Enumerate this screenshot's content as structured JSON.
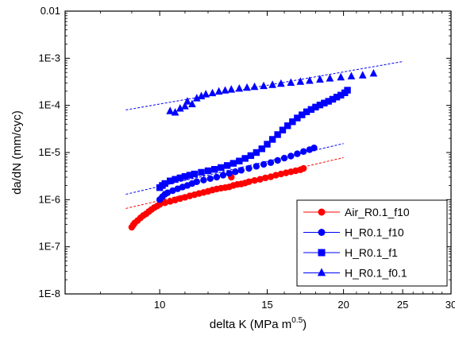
{
  "chart_data": {
    "type": "scatter",
    "xlabel": "delta K (MPa m",
    "xlabel_superscript": "0.5",
    "xlabel_close": ")",
    "ylabel": "da/dN (mm/cyc)",
    "xscale": "log",
    "yscale": "log",
    "xlim": [
      7.0,
      30.0
    ],
    "ylim": [
      1e-08,
      0.01
    ],
    "x_ticks": [
      {
        "value": 10,
        "label": "10"
      },
      {
        "value": 15,
        "label": "15"
      },
      {
        "value": 20,
        "label": "20"
      },
      {
        "value": 25,
        "label": "25"
      },
      {
        "value": 30,
        "label": "30"
      }
    ],
    "y_ticks": [
      {
        "value": 1e-08,
        "label": "1E-8"
      },
      {
        "value": 1e-07,
        "label": "1E-7"
      },
      {
        "value": 1e-06,
        "label": "1E-6"
      },
      {
        "value": 1e-05,
        "label": "1E-5"
      },
      {
        "value": 0.0001,
        "label": "1E-4"
      },
      {
        "value": 0.001,
        "label": "1E-3"
      },
      {
        "value": 0.01,
        "label": "0.01"
      }
    ],
    "legend_position": "bottom-right",
    "series": [
      {
        "name": "Air_R0.1_f10",
        "color": "#ff0000",
        "marker": "circle",
        "trend": {
          "x": [
            8.8,
            20.0
          ],
          "y": [
            6.5e-07,
            7.8e-06
          ]
        },
        "points": [
          [
            9.0,
            2.6e-07
          ],
          [
            9.05,
            2.9e-07
          ],
          [
            9.1,
            3.2e-07
          ],
          [
            9.2,
            3.6e-07
          ],
          [
            9.3,
            4.1e-07
          ],
          [
            9.4,
            4.6e-07
          ],
          [
            9.5,
            5e-07
          ],
          [
            9.6,
            5.6e-07
          ],
          [
            9.7,
            6.2e-07
          ],
          [
            9.8,
            6.8e-07
          ],
          [
            9.9,
            7.3e-07
          ],
          [
            10.0,
            7.9e-07
          ],
          [
            10.2,
            8.6e-07
          ],
          [
            10.4,
            9.2e-07
          ],
          [
            10.6,
            9.8e-07
          ],
          [
            10.8,
            1.05e-06
          ],
          [
            11.0,
            1.12e-06
          ],
          [
            11.2,
            1.2e-06
          ],
          [
            11.4,
            1.27e-06
          ],
          [
            11.6,
            1.35e-06
          ],
          [
            11.8,
            1.42e-06
          ],
          [
            12.0,
            1.5e-06
          ],
          [
            12.2,
            1.6e-06
          ],
          [
            12.4,
            1.68e-06
          ],
          [
            12.6,
            1.75e-06
          ],
          [
            12.8,
            1.8e-06
          ],
          [
            13.0,
            1.86e-06
          ],
          [
            13.1,
            3e-06
          ],
          [
            13.2,
            2e-06
          ],
          [
            13.4,
            2.1e-06
          ],
          [
            13.6,
            2.15e-06
          ],
          [
            13.8,
            2.25e-06
          ],
          [
            14.0,
            2.4e-06
          ],
          [
            14.3,
            2.55e-06
          ],
          [
            14.6,
            2.7e-06
          ],
          [
            14.9,
            2.9e-06
          ],
          [
            15.2,
            3.05e-06
          ],
          [
            15.5,
            3.3e-06
          ],
          [
            15.8,
            3.5e-06
          ],
          [
            16.1,
            3.7e-06
          ],
          [
            16.4,
            3.9e-06
          ],
          [
            16.7,
            4.1e-06
          ],
          [
            17.0,
            4.3e-06
          ],
          [
            17.2,
            4.6e-06
          ]
        ]
      },
      {
        "name": "H_R0.1_f10",
        "color": "#0000ff",
        "marker": "circle",
        "trend": {
          "x": [
            8.8,
            20.0
          ],
          "y": [
            1.3e-06,
            1.55e-05
          ]
        },
        "points": [
          [
            10.0,
            1e-06
          ],
          [
            10.1,
            1.15e-06
          ],
          [
            10.2,
            1.3e-06
          ],
          [
            10.3,
            1.4e-06
          ],
          [
            10.5,
            1.55e-06
          ],
          [
            10.7,
            1.7e-06
          ],
          [
            10.9,
            1.85e-06
          ],
          [
            11.1,
            2e-06
          ],
          [
            11.3,
            2.2e-06
          ],
          [
            11.5,
            2.4e-06
          ],
          [
            11.8,
            2.6e-06
          ],
          [
            12.1,
            2.8e-06
          ],
          [
            12.4,
            3e-06
          ],
          [
            12.7,
            3.3e-06
          ],
          [
            13.0,
            3.6e-06
          ],
          [
            13.3,
            3.9e-06
          ],
          [
            13.6,
            4.2e-06
          ],
          [
            14.0,
            4.6e-06
          ],
          [
            14.4,
            5.1e-06
          ],
          [
            14.8,
            5.6e-06
          ],
          [
            15.2,
            6.1e-06
          ],
          [
            15.6,
            6.8e-06
          ],
          [
            16.0,
            7.6e-06
          ],
          [
            16.4,
            8.4e-06
          ],
          [
            16.8,
            9.4e-06
          ],
          [
            17.2,
            1.05e-05
          ],
          [
            17.6,
            1.15e-05
          ],
          [
            17.9,
            1.25e-05
          ]
        ]
      },
      {
        "name": "H_R0.1_f1",
        "color": "#0000ff",
        "marker": "square",
        "trend": null,
        "points": [
          [
            10.0,
            1.8e-06
          ],
          [
            10.1,
            2e-06
          ],
          [
            10.2,
            2.2e-06
          ],
          [
            10.4,
            2.5e-06
          ],
          [
            10.6,
            2.7e-06
          ],
          [
            10.8,
            2.9e-06
          ],
          [
            11.0,
            3.1e-06
          ],
          [
            11.2,
            3.3e-06
          ],
          [
            11.4,
            3.5e-06
          ],
          [
            11.7,
            3.8e-06
          ],
          [
            12.0,
            4.1e-06
          ],
          [
            12.3,
            4.4e-06
          ],
          [
            12.6,
            4.8e-06
          ],
          [
            12.9,
            5.3e-06
          ],
          [
            13.2,
            5.9e-06
          ],
          [
            13.5,
            6.6e-06
          ],
          [
            13.8,
            7.5e-06
          ],
          [
            14.1,
            8.6e-06
          ],
          [
            14.4,
            1e-05
          ],
          [
            14.7,
            1.2e-05
          ],
          [
            15.0,
            1.5e-05
          ],
          [
            15.3,
            1.9e-05
          ],
          [
            15.6,
            2.4e-05
          ],
          [
            15.9,
            3e-05
          ],
          [
            16.2,
            3.7e-05
          ],
          [
            16.5,
            4.5e-05
          ],
          [
            16.8,
            5.4e-05
          ],
          [
            17.1,
            6.3e-05
          ],
          [
            17.4,
            7.3e-05
          ],
          [
            17.7,
            8.2e-05
          ],
          [
            18.0,
            9.2e-05
          ],
          [
            18.3,
            0.000102
          ],
          [
            18.6,
            0.000112
          ],
          [
            18.9,
            0.000122
          ],
          [
            19.2,
            0.000135
          ],
          [
            19.5,
            0.00015
          ],
          [
            19.8,
            0.000165
          ],
          [
            20.1,
            0.000185
          ],
          [
            20.3,
            0.00021
          ]
        ]
      },
      {
        "name": "H_R0.1_f0.1",
        "color": "#0000ff",
        "marker": "triangle",
        "trend": {
          "x": [
            8.8,
            25.0
          ],
          "y": [
            8e-05,
            0.00085
          ]
        },
        "points": [
          [
            10.4,
            7.5e-05
          ],
          [
            10.6,
            7e-05
          ],
          [
            10.8,
            8.5e-05
          ],
          [
            11.0,
            9.5e-05
          ],
          [
            11.1,
            0.00012
          ],
          [
            11.3,
            0.000105
          ],
          [
            11.5,
            0.00014
          ],
          [
            11.7,
            0.000155
          ],
          [
            11.9,
            0.00017
          ],
          [
            12.2,
            0.00018
          ],
          [
            12.5,
            0.000195
          ],
          [
            12.8,
            0.000205
          ],
          [
            13.1,
            0.000215
          ],
          [
            13.5,
            0.000225
          ],
          [
            13.9,
            0.000235
          ],
          [
            14.3,
            0.000245
          ],
          [
            14.8,
            0.000255
          ],
          [
            15.3,
            0.00027
          ],
          [
            15.8,
            0.000285
          ],
          [
            16.4,
            0.0003
          ],
          [
            17.0,
            0.000315
          ],
          [
            17.6,
            0.00033
          ],
          [
            18.3,
            0.00035
          ],
          [
            19.0,
            0.00037
          ],
          [
            19.8,
            0.00039
          ],
          [
            20.6,
            0.00041
          ],
          [
            21.5,
            0.00043
          ],
          [
            22.4,
            0.00047
          ]
        ]
      }
    ]
  }
}
